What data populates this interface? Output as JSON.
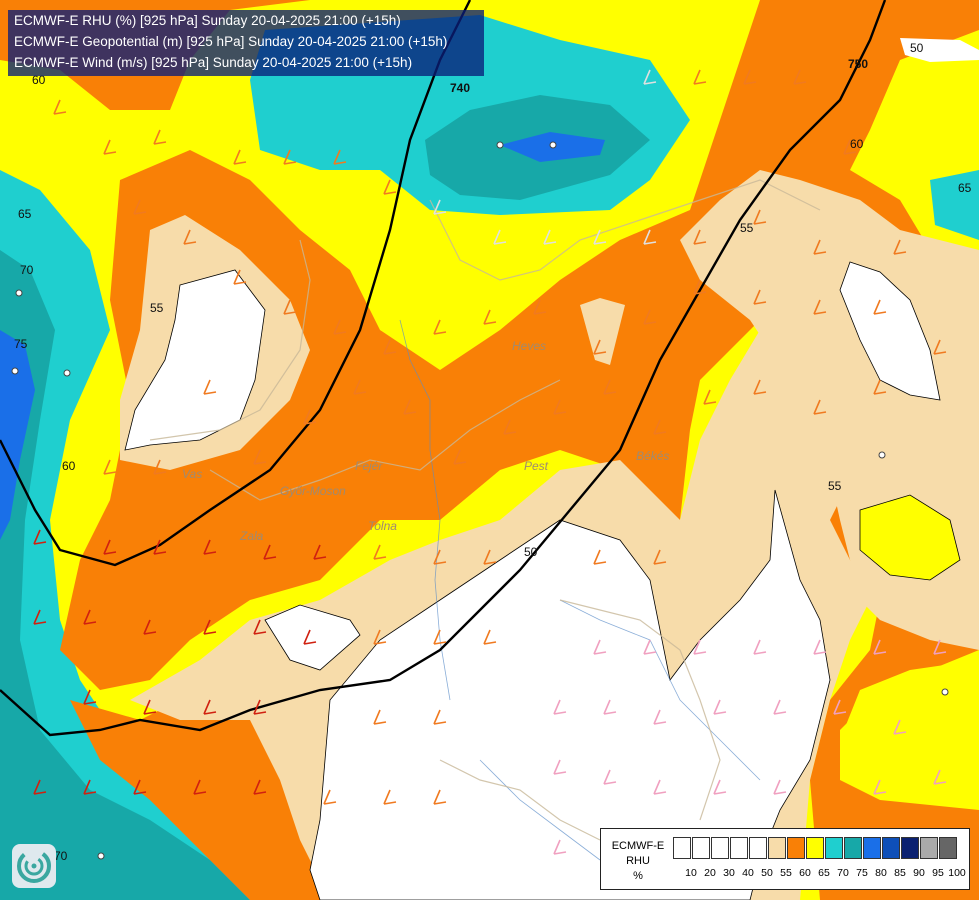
{
  "title_lines": [
    "ECMWF-E RHU (%) [925 hPa] Sunday 20-04-2025 21:00 (+15h)",
    "ECMWF-E Geopotential (m) [925 hPa] Sunday 20-04-2025 21:00 (+15h)",
    "ECMWF-E Wind (m/s) [925 hPa] Sunday 20-04-2025 21:00 (+15h)"
  ],
  "legend": {
    "label_lines": [
      "ECMWF-E",
      "RHU",
      "%"
    ],
    "bins": [
      {
        "value": "10",
        "color": "#ffffff"
      },
      {
        "value": "20",
        "color": "#ffffff"
      },
      {
        "value": "30",
        "color": "#ffffff"
      },
      {
        "value": "40",
        "color": "#ffffff"
      },
      {
        "value": "50",
        "color": "#ffffff"
      },
      {
        "value": "55",
        "color": "#f7dcaa"
      },
      {
        "value": "60",
        "color": "#f98006"
      },
      {
        "value": "65",
        "color": "#ffff00"
      },
      {
        "value": "70",
        "color": "#1fcfcf"
      },
      {
        "value": "75",
        "color": "#17a8a8"
      },
      {
        "value": "80",
        "color": "#1a6fe8"
      },
      {
        "value": "85",
        "color": "#0e4fb8"
      },
      {
        "value": "90",
        "color": "#0a2070"
      },
      {
        "value": "95",
        "color": "#aaaaaa"
      },
      {
        "value": "100",
        "color": "#666666"
      }
    ]
  },
  "rhu_contour_labels": [
    "50",
    "55",
    "60",
    "65",
    "70",
    "75"
  ],
  "geopotential_labels": [
    "740",
    "750"
  ],
  "place_names": [
    "Vas",
    "Zala",
    "Győr-Moson",
    "Fejér",
    "Tolna",
    "Pest",
    "Heves",
    "Békés"
  ],
  "colors": {
    "rhu_55": "#f7dcaa",
    "rhu_60": "#f98006",
    "rhu_65": "#ffff00",
    "rhu_70": "#1fcfcf",
    "rhu_75": "#17a8a8",
    "rhu_80": "#1a6fe8",
    "geopotential_line": "#000000",
    "title_bg": "#0a1e78"
  },
  "logo_icon": "ecmwf-swirl-icon"
}
